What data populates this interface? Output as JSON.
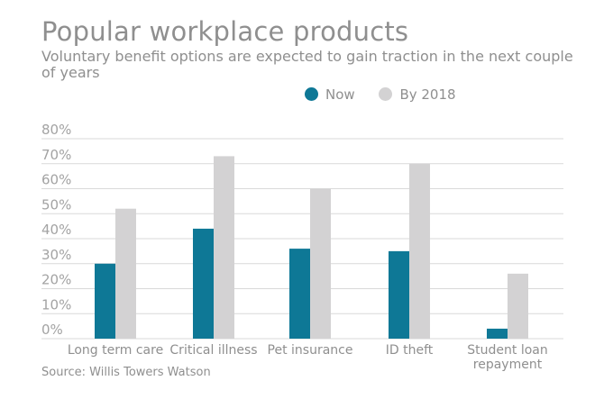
{
  "chart_data": {
    "type": "bar",
    "title": "Popular workplace products",
    "subtitle": "Voluntary benefit options are expected to gain traction in the next couple of years",
    "categories": [
      "Long term care",
      "Critical illness",
      "Pet insurance",
      "ID theft",
      "Student loan repayment"
    ],
    "series": [
      {
        "name": "Now",
        "color": "#0e7896",
        "values": [
          30,
          44,
          36,
          35,
          4
        ]
      },
      {
        "name": "By 2018",
        "color": "#d3d2d3",
        "values": [
          52,
          73,
          60,
          70,
          26
        ]
      }
    ],
    "yticks": [
      "0%",
      "10%",
      "20%",
      "30%",
      "40%",
      "50%",
      "60%",
      "70%",
      "80%"
    ],
    "ylim": [
      0,
      80
    ],
    "grid": true,
    "legend_position": "top",
    "source": "Source: Willis Towers Watson"
  }
}
